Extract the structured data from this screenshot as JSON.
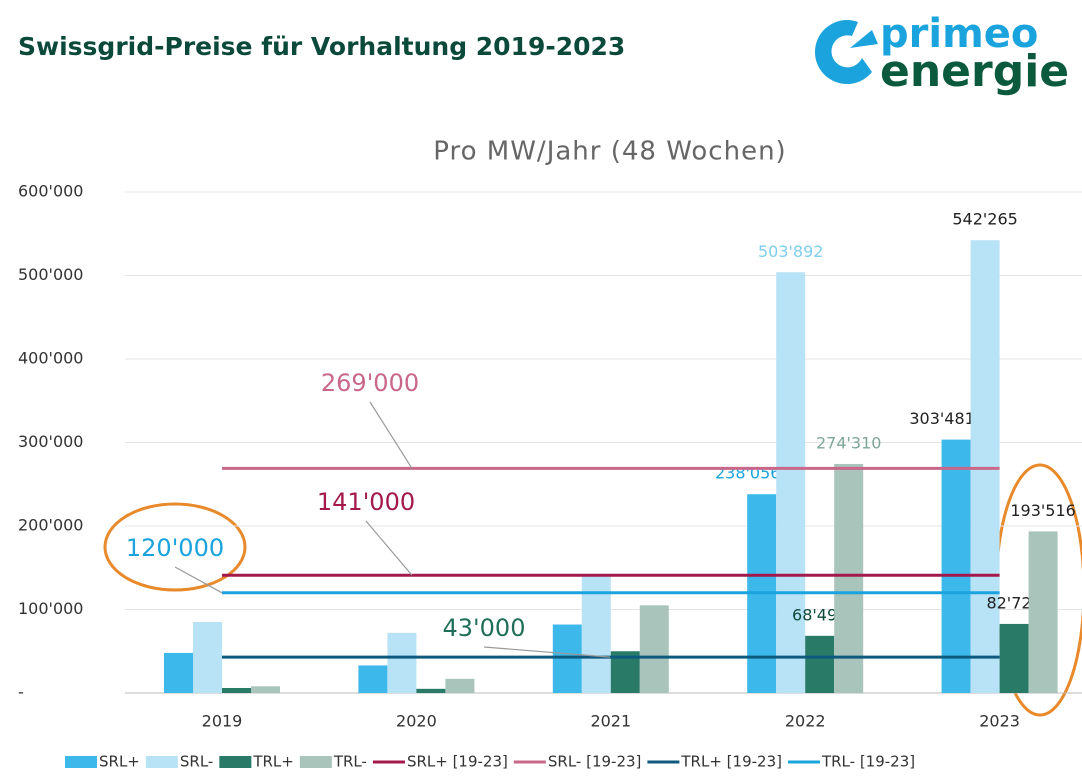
{
  "chart_data": {
    "type": "bar",
    "title": "Swissgrid-Preise für Vorhaltung 2019-2023",
    "subtitle": "Pro MW/Jahr (48 Wochen)",
    "categories": [
      "2019",
      "2020",
      "2021",
      "2022",
      "2023"
    ],
    "series": [
      {
        "name": "SRL+",
        "color": "#3cb8ea",
        "values": [
          48000,
          33000,
          82000,
          238056,
          303481
        ],
        "value_labels": [
          null,
          null,
          null,
          "238'056",
          "303'481"
        ]
      },
      {
        "name": "SRL-",
        "color": "#b8e2f6",
        "values": [
          85000,
          72000,
          140000,
          503892,
          542265
        ],
        "value_labels": [
          null,
          null,
          null,
          "503'892",
          "542'265"
        ]
      },
      {
        "name": "TRL+",
        "color": "#2a7a68",
        "values": [
          6000,
          5000,
          50000,
          68490,
          82726
        ],
        "value_labels": [
          null,
          null,
          null,
          "68'490",
          "82'726"
        ]
      },
      {
        "name": "TRL-",
        "color": "#a9c4bb",
        "values": [
          8000,
          17000,
          105000,
          274310,
          193516
        ],
        "value_labels": [
          null,
          null,
          null,
          "274'310",
          "193'516"
        ]
      }
    ],
    "lines": [
      {
        "name": "SRL+ [19-23]",
        "color": "#a3194b",
        "value": 141000,
        "label": "141'000"
      },
      {
        "name": "SRL- [19-23]",
        "color": "#c9678a",
        "value": 269000,
        "label": "269'000"
      },
      {
        "name": "TRL+ [19-23]",
        "color": "#0e5a7e",
        "value": 43000,
        "label": "43'000"
      },
      {
        "name": "TRL- [19-23]",
        "color": "#1aa3dc",
        "value": 120000,
        "label": "120'000"
      }
    ],
    "ylim": [
      0,
      600000
    ],
    "yticks": [
      {
        "value": 0,
        "label": "-"
      },
      {
        "value": 100000,
        "label": "100'000"
      },
      {
        "value": 200000,
        "label": "200'000"
      },
      {
        "value": 300000,
        "label": "300'000"
      },
      {
        "value": 400000,
        "label": "400'000"
      },
      {
        "value": 500000,
        "label": "500'000"
      },
      {
        "value": 600000,
        "label": "600'000"
      }
    ],
    "grid": true
  },
  "logo": [
    "primeo",
    "energie"
  ]
}
